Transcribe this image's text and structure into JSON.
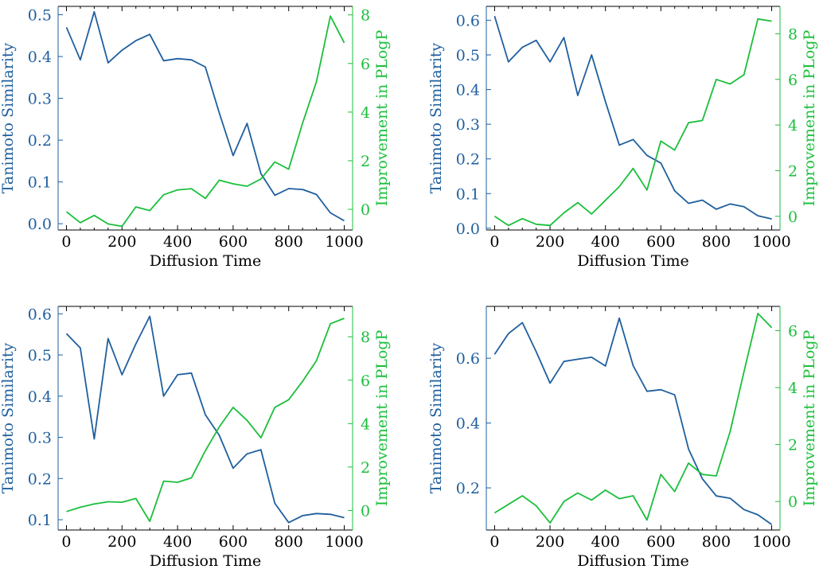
{
  "colors": {
    "similarity": "#1f5f9e",
    "plogp": "#1bbf3c",
    "axis": "#000000"
  },
  "chart_data": [
    {
      "type": "line",
      "xlabel": "Diffusion Time",
      "ylabel_left": "Tanimoto Similarity",
      "ylabel_right": "Improvement in PLogP",
      "x": [
        0,
        50,
        100,
        150,
        200,
        250,
        300,
        350,
        400,
        450,
        500,
        550,
        600,
        650,
        700,
        750,
        800,
        850,
        900,
        950,
        1000
      ],
      "xticks": [
        "0",
        "200",
        "400",
        "600",
        "800",
        "1000"
      ],
      "xlim": [
        -30,
        1030
      ],
      "left": {
        "ylim": [
          -0.015,
          0.52
        ],
        "ticks": [
          "0.0",
          "0.1",
          "0.2",
          "0.3",
          "0.4",
          "0.5"
        ],
        "values": [
          0.47,
          0.392,
          0.507,
          0.385,
          0.415,
          0.438,
          0.453,
          0.39,
          0.395,
          0.392,
          0.375,
          0.265,
          0.163,
          0.24,
          0.12,
          0.068,
          0.084,
          0.082,
          0.07,
          0.026,
          0.007
        ]
      },
      "right": {
        "ylim": [
          -0.85,
          8.35
        ],
        "ticks": [
          "0",
          "2",
          "4",
          "6",
          "8"
        ],
        "values": [
          -0.1,
          -0.55,
          -0.25,
          -0.6,
          -0.7,
          0.1,
          -0.05,
          0.6,
          0.8,
          0.85,
          0.45,
          1.2,
          1.05,
          0.95,
          1.25,
          1.95,
          1.65,
          3.55,
          5.25,
          7.95,
          6.85
        ]
      }
    },
    {
      "type": "line",
      "xlabel": "Diffusion Time",
      "ylabel_left": "Tanimoto Similarity",
      "ylabel_right": "Improvement in PLogP",
      "x": [
        0,
        50,
        100,
        150,
        200,
        250,
        300,
        350,
        400,
        450,
        500,
        550,
        600,
        650,
        700,
        750,
        800,
        850,
        900,
        950,
        1000
      ],
      "xticks": [
        "0",
        "200",
        "400",
        "600",
        "800",
        "1000"
      ],
      "xlim": [
        -30,
        1030
      ],
      "left": {
        "ylim": [
          -0.005,
          0.64
        ],
        "ticks": [
          "0.0",
          "0.1",
          "0.2",
          "0.3",
          "0.4",
          "0.5",
          "0.6"
        ],
        "values": [
          0.612,
          0.48,
          0.522,
          0.542,
          0.48,
          0.55,
          0.383,
          0.5,
          0.365,
          0.24,
          0.256,
          0.21,
          0.188,
          0.108,
          0.072,
          0.081,
          0.055,
          0.07,
          0.062,
          0.036,
          0.027
        ]
      },
      "right": {
        "ylim": [
          -0.6,
          9.2
        ],
        "ticks": [
          "0",
          "2",
          "4",
          "6",
          "8"
        ],
        "values": [
          0.0,
          -0.4,
          -0.1,
          -0.35,
          -0.4,
          0.15,
          0.6,
          0.1,
          0.7,
          1.3,
          2.1,
          1.15,
          3.3,
          2.9,
          4.1,
          4.2,
          6.0,
          5.8,
          6.2,
          8.65,
          8.55
        ]
      }
    },
    {
      "type": "line",
      "xlabel": "Diffusion Time",
      "ylabel_left": "Tanimoto Similarity",
      "ylabel_right": "Improvement in PLogP",
      "x": [
        0,
        50,
        100,
        150,
        200,
        250,
        300,
        350,
        400,
        450,
        500,
        550,
        600,
        650,
        700,
        750,
        800,
        850,
        900,
        950,
        1000
      ],
      "xticks": [
        "0",
        "200",
        "400",
        "600",
        "800",
        "1000"
      ],
      "xlim": [
        -30,
        1030
      ],
      "left": {
        "ylim": [
          0.075,
          0.618
        ],
        "ticks": [
          "0.1",
          "0.2",
          "0.3",
          "0.4",
          "0.5",
          "0.6"
        ],
        "values": [
          0.552,
          0.517,
          0.296,
          0.54,
          0.452,
          0.527,
          0.594,
          0.4,
          0.452,
          0.456,
          0.355,
          0.305,
          0.225,
          0.26,
          0.27,
          0.14,
          0.093,
          0.11,
          0.115,
          0.113,
          0.105
        ]
      },
      "right": {
        "ylim": [
          -0.9,
          9.4
        ],
        "ticks": [
          "0",
          "2",
          "4",
          "6",
          "8"
        ],
        "values": [
          -0.05,
          0.15,
          0.3,
          0.4,
          0.38,
          0.55,
          -0.5,
          1.35,
          1.3,
          1.5,
          2.75,
          3.85,
          4.75,
          4.15,
          3.35,
          4.75,
          5.1,
          5.95,
          6.9,
          8.6,
          8.85
        ]
      }
    },
    {
      "type": "line",
      "xlabel": "Diffusion Time",
      "ylabel_left": "Tanimoto Similarity",
      "ylabel_right": "Improvement in PLogP",
      "x": [
        0,
        50,
        100,
        150,
        200,
        250,
        300,
        350,
        400,
        450,
        500,
        550,
        600,
        650,
        700,
        750,
        800,
        850,
        900,
        950,
        1000
      ],
      "xticks": [
        "0",
        "200",
        "400",
        "600",
        "800",
        "1000"
      ],
      "xlim": [
        -30,
        1030
      ],
      "left": {
        "ylim": [
          0.07,
          0.76
        ],
        "ticks": [
          "0.2",
          "0.4",
          "0.6"
        ],
        "values": [
          0.612,
          0.676,
          0.71,
          0.62,
          0.523,
          0.59,
          0.597,
          0.603,
          0.576,
          0.724,
          0.577,
          0.498,
          0.503,
          0.487,
          0.32,
          0.228,
          0.175,
          0.168,
          0.133,
          0.117,
          0.087
        ]
      },
      "right": {
        "ylim": [
          -1.0,
          6.85
        ],
        "ticks": [
          "0",
          "2",
          "4",
          "6"
        ],
        "values": [
          -0.4,
          -0.1,
          0.2,
          -0.15,
          -0.75,
          0.0,
          0.3,
          0.05,
          0.4,
          0.1,
          0.2,
          -0.65,
          0.95,
          0.35,
          1.35,
          0.95,
          0.9,
          2.45,
          4.55,
          6.6,
          6.1
        ]
      }
    }
  ]
}
